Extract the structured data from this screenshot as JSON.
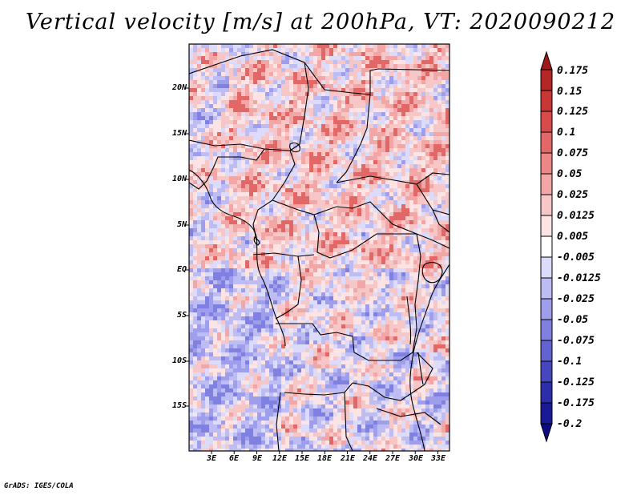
{
  "title": "Vertical velocity [m/s] at 200hPa, VT: 2020090212",
  "credit": "GrADS: IGES/COLA",
  "map": {
    "lat_labels": [
      "20N",
      "15N",
      "10N",
      "5N",
      "EQ",
      "5S",
      "10S",
      "15S"
    ],
    "lon_labels": [
      "3E",
      "6E",
      "9E",
      "12E",
      "15E",
      "18E",
      "21E",
      "24E",
      "27E",
      "30E",
      "33E"
    ]
  },
  "colorbar": {
    "labels": [
      "0.175",
      "0.15",
      "0.125",
      "0.1",
      "0.075",
      "0.05",
      "0.025",
      "0.0125",
      "0.005",
      "-0.005",
      "-0.0125",
      "-0.025",
      "-0.05",
      "-0.075",
      "-0.1",
      "-0.125",
      "-0.175",
      "-0.2"
    ],
    "colors": [
      "#a01818",
      "#b52626",
      "#c93636",
      "#d84b4b",
      "#e26868",
      "#eb8787",
      "#f2a6a6",
      "#f7c6c6",
      "#fce4e4",
      "#ffffff",
      "#dcdcfa",
      "#bdbdf3",
      "#9e9eec",
      "#8080e0",
      "#6262d0",
      "#4646bf",
      "#2d2dac",
      "#1a1a96",
      "#0c0c80"
    ]
  }
}
